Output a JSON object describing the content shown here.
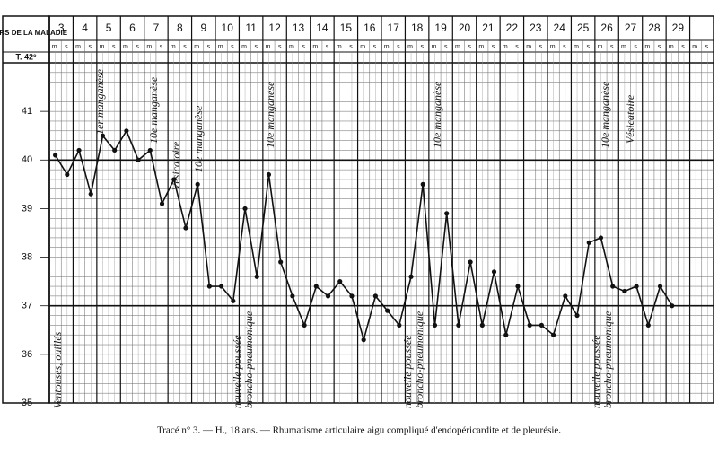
{
  "chart_data": {
    "type": "line",
    "header_label": "JOURS DE LA MALADIE",
    "top_label": "T. 42°",
    "sub_labels": [
      "m.",
      "s."
    ],
    "categories": [
      "3",
      "4",
      "5",
      "6",
      "7",
      "8",
      "9",
      "10",
      "11",
      "12",
      "13",
      "14",
      "15",
      "16",
      "17",
      "18",
      "19",
      "20",
      "21",
      "22",
      "23",
      "24",
      "25",
      "26",
      "27",
      "28",
      "29",
      null
    ],
    "series": [
      {
        "color": "#111111",
        "values": [
          40.1,
          40.2,
          40.5,
          40.6,
          40.2,
          39.6,
          39.5,
          37.4,
          39.0,
          39.7,
          37.2,
          37.4,
          37.5,
          36.3,
          36.9,
          37.6,
          36.6,
          36.6,
          36.6,
          36.4,
          36.6,
          36.4,
          36.8,
          38.4,
          37.3,
          36.6,
          37.0,
          null
        ]
      },
      {
        "color": "#111111",
        "values": [
          39.7,
          39.3,
          40.2,
          40.0,
          39.1,
          38.6,
          37.4,
          37.1,
          37.6,
          37.9,
          36.6,
          37.2,
          37.2,
          37.2,
          36.6,
          39.5,
          38.9,
          37.9,
          37.7,
          37.4,
          36.6,
          37.2,
          38.3,
          37.4,
          37.4,
          37.4,
          null,
          null
        ]
      }
    ],
    "ylim": [
      35,
      42
    ],
    "yticks": [
      35,
      36,
      37,
      38,
      39,
      40,
      41
    ],
    "annotations": [
      "Ventouses, ouillés",
      "1er manganèse",
      "10e manganèse",
      "Vésicatoire",
      "10e manganèse",
      "nouvelle poussée",
      "broncho-pneumonique",
      "10e manganèse",
      "nouvelle poussée",
      "broncho-pneumonique",
      "10e manganèse",
      "nouvelle poussée",
      "broncho-pneumonique",
      "10e manganèse",
      "Vésicatoire"
    ],
    "caption": "Tracé n° 3. — H., 18 ans. — Rhumatisme articulaire aigu compliqué d'endopéricardite et de pleurésie."
  }
}
